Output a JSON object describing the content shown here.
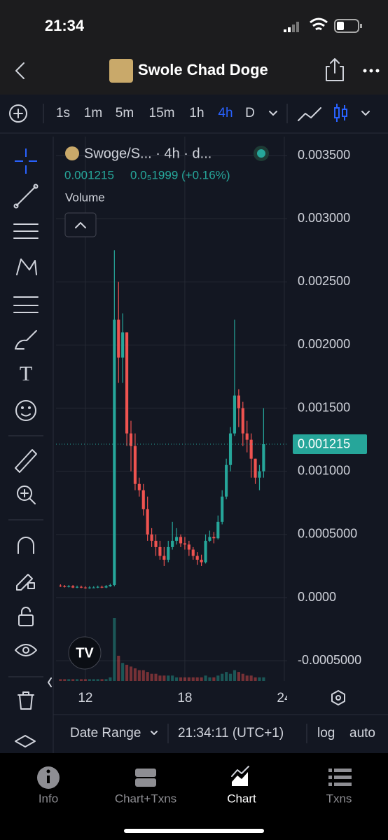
{
  "status": {
    "time": "21:34"
  },
  "header": {
    "title": "Swole Chad Doge"
  },
  "toolbar": {
    "intervals": [
      "1s",
      "1m",
      "5m",
      "15m",
      "1h",
      "4h",
      "D"
    ],
    "active_interval": 5
  },
  "chart_data": {
    "type": "candlestick",
    "legend": "Swoge/S...  · 4h · d...",
    "change": "0.0₅1999 (+0.16%)",
    "volume_label": "Volume",
    "up_color": "#26a69a",
    "down_color": "#ef5350",
    "log": false,
    "grid": true,
    "x": [
      10.5,
      10.75,
      11,
      11.25,
      11.5,
      11.75,
      12,
      12.25,
      12.5,
      12.75,
      13,
      13.25,
      13.5,
      13.75,
      14,
      14.25,
      14.5,
      14.75,
      15,
      15.25,
      15.5,
      15.75,
      16,
      16.25,
      16.5,
      16.75,
      17,
      17.25,
      17.5,
      17.75,
      18,
      18.25,
      18.5,
      18.75,
      19,
      19.25,
      19.5,
      19.75,
      20,
      20.25,
      20.5,
      20.75,
      21,
      21.25,
      21.5,
      21.75,
      22,
      22.25,
      22.5,
      22.75
    ],
    "open": [
      9.5e-05,
      9e-05,
      8.5e-05,
      9e-05,
      8e-05,
      8.5e-05,
      8e-05,
      7.5e-05,
      8e-05,
      8e-05,
      8.5e-05,
      8e-05,
      9e-05,
      0.0001,
      0.0022,
      0.0019,
      0.0021,
      0.0013,
      0.0012,
      0.0009,
      0.00085,
      0.0007,
      0.0005,
      0.00045,
      0.0004,
      0.00033,
      0.0003,
      0.0004,
      0.00045,
      0.00048,
      0.00043,
      0.00042,
      0.00038,
      0.00033,
      0.0003,
      0.00028,
      0.00045,
      0.00048,
      0.00047,
      0.0006,
      0.0008,
      0.00105,
      0.0013,
      0.0016,
      0.0015,
      0.0013,
      0.00125,
      0.0011,
      0.00095,
      0.001
    ],
    "high": [
      0.000105,
      0.0001,
      0.0001,
      0.0001,
      9.5e-05,
      9.5e-05,
      9e-05,
      9e-05,
      9e-05,
      9.5e-05,
      9.5e-05,
      0.0001,
      0.00011,
      0.00275,
      0.0025,
      0.00225,
      0.0021,
      0.0014,
      0.0013,
      0.00095,
      0.0009,
      0.0008,
      0.00055,
      0.0005,
      0.00045,
      0.0004,
      0.00045,
      0.0006,
      0.00055,
      0.0005,
      0.00048,
      0.00045,
      0.0004,
      0.00036,
      0.00034,
      0.0005,
      0.00053,
      0.00052,
      0.00065,
      0.00085,
      0.0011,
      0.00135,
      0.0022,
      0.00165,
      0.00155,
      0.0014,
      0.0013,
      0.0011,
      0.00105,
      0.0015
    ],
    "low": [
      8.5e-05,
      8e-05,
      8e-05,
      7.5e-05,
      7.5e-05,
      7.5e-05,
      7e-05,
      7e-05,
      7.5e-05,
      7.5e-05,
      7.5e-05,
      7.5e-05,
      8.5e-05,
      9e-05,
      0.0017,
      0.0017,
      0.0012,
      0.001,
      0.00085,
      0.0008,
      0.00065,
      0.00045,
      0.0004,
      0.00033,
      0.0003,
      0.00025,
      0.00028,
      0.00038,
      0.00042,
      0.0004,
      0.00038,
      0.00033,
      0.0003,
      0.00026,
      0.00025,
      0.00027,
      0.00044,
      0.00043,
      0.00046,
      0.00058,
      0.00078,
      0.001,
      0.00128,
      0.00135,
      0.0012,
      0.00115,
      0.00095,
      0.0009,
      0.00085,
      0.00095
    ],
    "close": [
      9e-05,
      8.5e-05,
      9e-05,
      8e-05,
      8.5e-05,
      8e-05,
      7.5e-05,
      8e-05,
      8e-05,
      8.5e-05,
      8e-05,
      9e-05,
      0.0001,
      0.0022,
      0.0019,
      0.0021,
      0.0013,
      0.0012,
      0.0009,
      0.00085,
      0.0007,
      0.0005,
      0.00045,
      0.0004,
      0.00033,
      0.0003,
      0.0004,
      0.00045,
      0.00048,
      0.00043,
      0.00042,
      0.00038,
      0.00033,
      0.0003,
      0.00028,
      0.00045,
      0.00048,
      0.00047,
      0.0006,
      0.0008,
      0.00105,
      0.0013,
      0.0016,
      0.0015,
      0.0013,
      0.00125,
      0.0011,
      0.00095,
      0.001,
      0.001215
    ],
    "volume": [
      1,
      1,
      1,
      1,
      1,
      1,
      1,
      1,
      1,
      1,
      1,
      1,
      2,
      35,
      14,
      10,
      9,
      8,
      7,
      6,
      6,
      5,
      4,
      4,
      3,
      3,
      3,
      3,
      2,
      2,
      2,
      2,
      2,
      2,
      2,
      3,
      2,
      2,
      3,
      4,
      5,
      4,
      6,
      5,
      4,
      3,
      3,
      2,
      2,
      2
    ],
    "xlim": [
      10.23,
      24.17
    ],
    "xticks": [
      12,
      18,
      24
    ],
    "ylim": [
      -0.00066,
      0.00365
    ],
    "yticks": [
      {
        "value": 0.0035,
        "label": "0.003500"
      },
      {
        "value": 0.003,
        "label": "0.003000"
      },
      {
        "value": 0.0025,
        "label": "0.002500"
      },
      {
        "value": 0.002,
        "label": "0.002000"
      },
      {
        "value": 0.0015,
        "label": "0.001500"
      },
      {
        "value": 0.001,
        "label": "0.001000"
      },
      {
        "value": 0.0005,
        "label": "0.0005000"
      },
      {
        "value": 0,
        "label": "0.0000"
      },
      {
        "value": -0.0005,
        "label": "-0.0005000"
      }
    ]
  },
  "footer": {
    "date_range": "Date Range",
    "clock": "21:34:11 (UTC+1)",
    "log": "log",
    "auto": "auto"
  },
  "tabs": [
    "Info",
    "Chart+Txns",
    "Chart",
    "Txns"
  ],
  "active_tab": 2
}
